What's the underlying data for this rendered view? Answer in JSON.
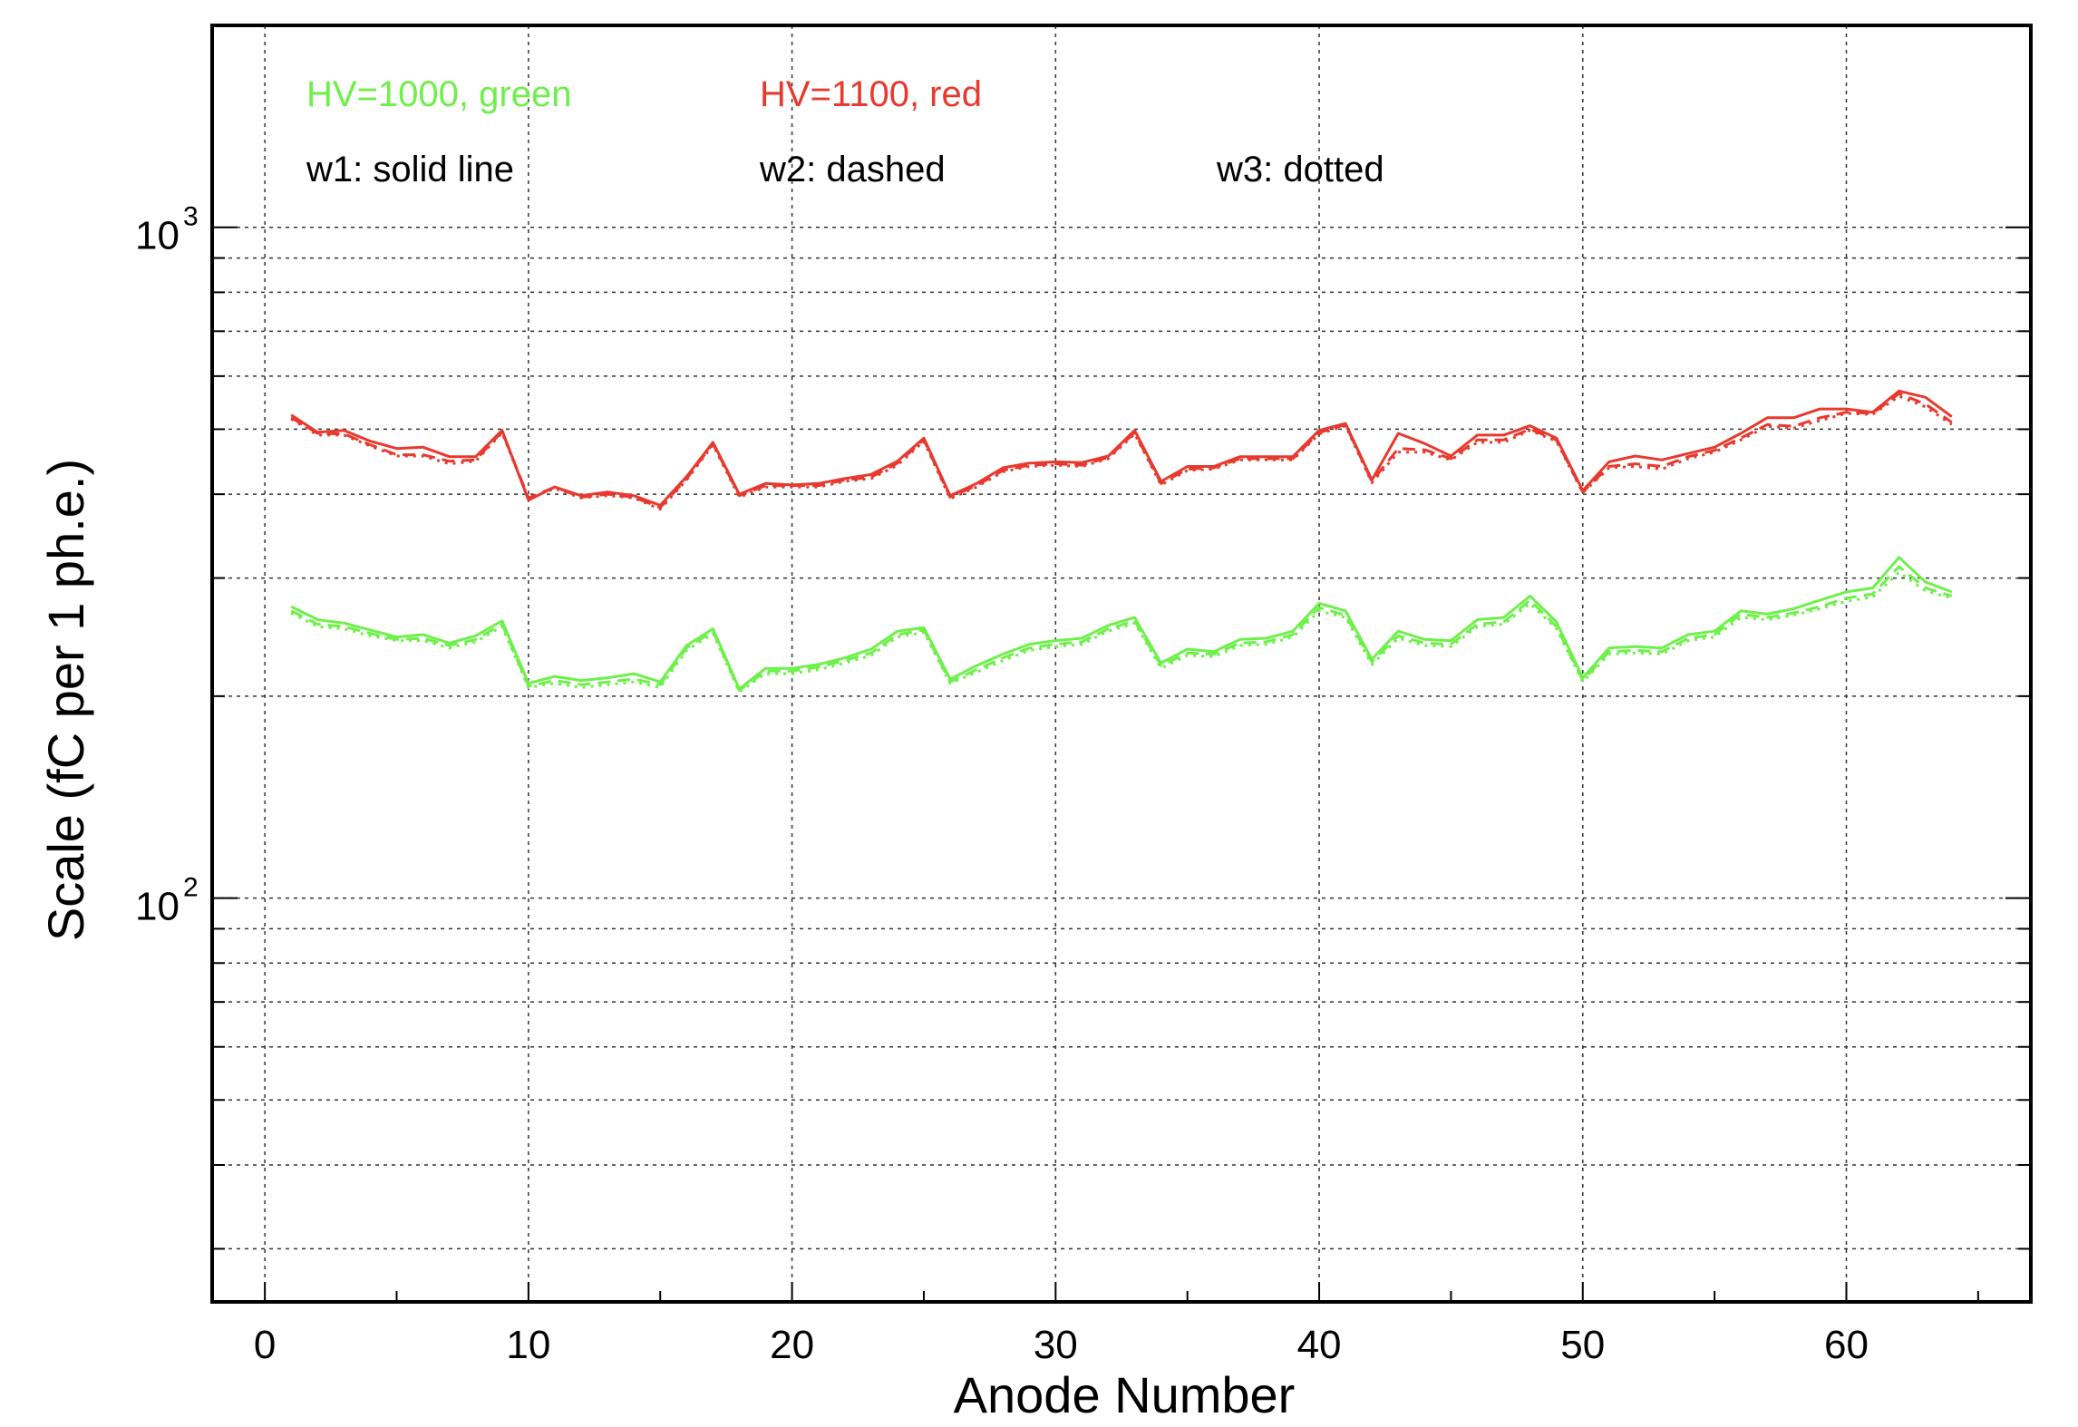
{
  "chart_data": {
    "type": "line",
    "xlabel": "Anode Number",
    "ylabel": "Scale (fC per 1 ph.e.)",
    "xlim": [
      -2,
      67
    ],
    "ylim": [
      25,
      2000
    ],
    "yscale": "log",
    "x_ticks": [
      0,
      10,
      20,
      30,
      40,
      50,
      60
    ],
    "y_ticks": [
      {
        "base": "10",
        "exp": "2",
        "value": 100
      },
      {
        "base": "10",
        "exp": "3",
        "value": 1000
      }
    ],
    "grid": true,
    "annotations": [
      {
        "text": "HV=1000, green",
        "color": "#6ef04a"
      },
      {
        "text": "HV=1100, red",
        "color": "#e8392e"
      },
      {
        "text": "w1: solid line",
        "color": "#000000"
      },
      {
        "text": "w2: dashed",
        "color": "#000000"
      },
      {
        "text": "w3: dotted",
        "color": "#000000"
      }
    ],
    "x": [
      1,
      2,
      3,
      4,
      5,
      6,
      7,
      8,
      9,
      10,
      11,
      12,
      13,
      14,
      15,
      16,
      17,
      18,
      19,
      20,
      21,
      22,
      23,
      24,
      25,
      26,
      27,
      28,
      29,
      30,
      31,
      32,
      33,
      34,
      35,
      36,
      37,
      38,
      39,
      40,
      41,
      42,
      43,
      44,
      45,
      46,
      47,
      48,
      49,
      50,
      51,
      52,
      53,
      54,
      55,
      56,
      57,
      58,
      59,
      60,
      61,
      62,
      63,
      64
    ],
    "series": [
      {
        "voltage": "HV=1100",
        "wire": "w1",
        "color": "#e8392e",
        "dash": "solid",
        "values": [
          525,
          495,
          498,
          480,
          468,
          470,
          455,
          455,
          498,
          392,
          410,
          398,
          403,
          398,
          385,
          425,
          478,
          400,
          415,
          413,
          415,
          422,
          428,
          448,
          485,
          398,
          415,
          438,
          445,
          447,
          446,
          456,
          498,
          418,
          440,
          440,
          455,
          455,
          455,
          498,
          510,
          420,
          493,
          476,
          456,
          490,
          490,
          506,
          485,
          405,
          447,
          456,
          450,
          460,
          470,
          493,
          520,
          520,
          536,
          536,
          530,
          570,
          558,
          522
        ]
      },
      {
        "voltage": "HV=1100",
        "wire": "w2",
        "color": "#e8392e",
        "dash": "dashed",
        "values": [
          520,
          493,
          492,
          474,
          458,
          458,
          448,
          450,
          496,
          395,
          410,
          396,
          400,
          396,
          382,
          422,
          476,
          398,
          412,
          412,
          412,
          420,
          424,
          445,
          482,
          396,
          412,
          434,
          442,
          444,
          442,
          454,
          494,
          415,
          436,
          438,
          452,
          452,
          452,
          494,
          508,
          418,
          468,
          466,
          452,
          482,
          482,
          500,
          482,
          403,
          440,
          444,
          440,
          455,
          465,
          485,
          508,
          505,
          520,
          530,
          528,
          565,
          545,
          512
        ]
      },
      {
        "voltage": "HV=1100",
        "wire": "w3",
        "color": "#e8392e",
        "dash": "dotted",
        "values": [
          518,
          490,
          490,
          472,
          456,
          456,
          444,
          448,
          494,
          394,
          408,
          395,
          398,
          395,
          380,
          420,
          474,
          396,
          410,
          410,
          410,
          418,
          422,
          442,
          480,
          394,
          410,
          432,
          440,
          442,
          440,
          452,
          492,
          413,
          434,
          436,
          450,
          450,
          450,
          492,
          506,
          416,
          462,
          462,
          450,
          478,
          478,
          498,
          480,
          402,
          438,
          440,
          436,
          452,
          462,
          482,
          505,
          502,
          515,
          528,
          526,
          560,
          540,
          508
        ]
      },
      {
        "voltage": "HV=1000",
        "wire": "w1",
        "color": "#6ef04a",
        "dash": "solid",
        "values": [
          272,
          260,
          257,
          251,
          245,
          247,
          240,
          246,
          259,
          209,
          214,
          211,
          213,
          216,
          210,
          238,
          252,
          205,
          220,
          220,
          223,
          228,
          235,
          250,
          253,
          212,
          222,
          231,
          239,
          242,
          244,
          255,
          262,
          224,
          235,
          233,
          243,
          244,
          250,
          275,
          268,
          227,
          250,
          243,
          242,
          260,
          262,
          282,
          258,
          213,
          236,
          237,
          236,
          247,
          250,
          268,
          265,
          270,
          278,
          286,
          290,
          322,
          296,
          286
        ]
      },
      {
        "voltage": "HV=1000",
        "wire": "w2",
        "color": "#6ef04a",
        "dash": "dashed",
        "values": [
          268,
          256,
          254,
          248,
          243,
          244,
          238,
          243,
          256,
          207,
          211,
          208,
          210,
          212,
          208,
          236,
          250,
          204,
          218,
          218,
          221,
          226,
          232,
          247,
          251,
          210,
          219,
          228,
          236,
          239,
          241,
          252,
          259,
          222,
          232,
          231,
          240,
          241,
          247,
          271,
          264,
          225,
          246,
          240,
          239,
          256,
          258,
          278,
          254,
          211,
          233,
          234,
          233,
          244,
          247,
          265,
          262,
          266,
          272,
          280,
          284,
          312,
          290,
          282
        ]
      },
      {
        "voltage": "HV=1000",
        "wire": "w3",
        "color": "#6ef04a",
        "dash": "dotted",
        "values": [
          266,
          254,
          252,
          246,
          242,
          242,
          236,
          241,
          254,
          206,
          209,
          206,
          208,
          210,
          206,
          234,
          248,
          203,
          216,
          216,
          219,
          224,
          230,
          245,
          249,
          209,
          217,
          226,
          234,
          237,
          239,
          250,
          257,
          220,
          230,
          229,
          238,
          239,
          245,
          268,
          262,
          223,
          244,
          238,
          237,
          254,
          256,
          275,
          252,
          210,
          231,
          232,
          231,
          242,
          245,
          262,
          260,
          264,
          270,
          277,
          281,
          306,
          287,
          280
        ]
      }
    ]
  }
}
